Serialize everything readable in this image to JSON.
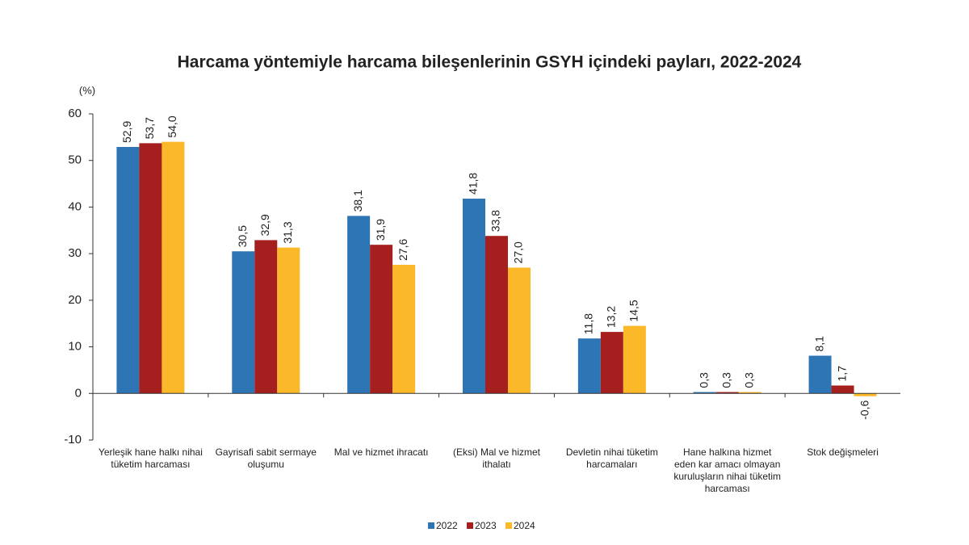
{
  "chart_data": {
    "type": "bar",
    "title": "Harcama yöntemiyle harcama bileşenlerinin GSYH içindeki payları, 2022-2024",
    "y_label": "(%)",
    "categories": [
      "Yerleşik hane halkı nihai tüketim harcaması",
      "Gayrisafi sabit sermaye oluşumu",
      "Mal ve hizmet ihracatı",
      "(Eksi) Mal ve hizmet ithalatı",
      "Devletin nihai tüketim harcamaları",
      "Hane halkına hizmet eden kar amacı olmayan kuruluşların nihai tüketim harcaması",
      "Stok değişmeleri"
    ],
    "series": [
      {
        "name": "2022",
        "color": "#2e75b6",
        "values": [
          52.9,
          30.5,
          38.1,
          41.8,
          11.8,
          0.3,
          8.1
        ],
        "value_labels": [
          "52,9",
          "30,5",
          "38,1",
          "41,8",
          "11,8",
          "0,3",
          "8,1"
        ]
      },
      {
        "name": "2023",
        "color": "#a51f1f",
        "values": [
          53.7,
          32.9,
          31.9,
          33.8,
          13.2,
          0.3,
          1.7
        ],
        "value_labels": [
          "53,7",
          "32,9",
          "31,9",
          "33,8",
          "13,2",
          "0,3",
          "1,7"
        ]
      },
      {
        "name": "2024",
        "color": "#fbb829",
        "values": [
          54.0,
          31.3,
          27.6,
          27.0,
          14.5,
          0.3,
          -0.6
        ],
        "value_labels": [
          "54,0",
          "31,3",
          "27,6",
          "27,0",
          "14,5",
          "0,3",
          "-0,6"
        ]
      }
    ],
    "ylim": [
      -10,
      60
    ],
    "yticks": [
      -10,
      0,
      10,
      20,
      30,
      40,
      50,
      60
    ],
    "legend": "bottom"
  }
}
